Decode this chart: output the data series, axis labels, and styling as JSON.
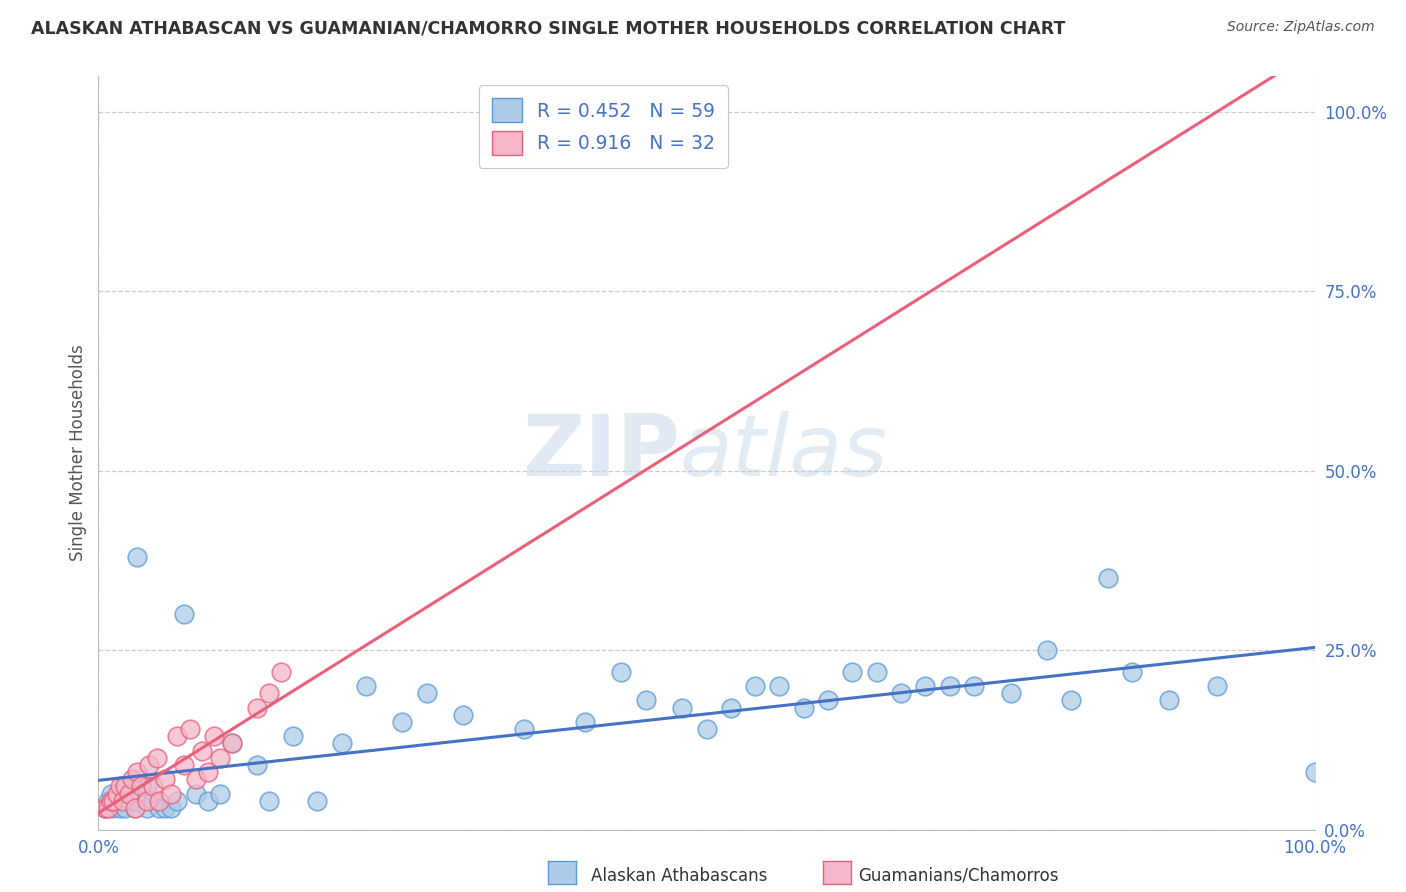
{
  "title": "ALASKAN ATHABASCAN VS GUAMANIAN/CHAMORRO SINGLE MOTHER HOUSEHOLDS CORRELATION CHART",
  "source": "Source: ZipAtlas.com",
  "ylabel": "Single Mother Households",
  "xlim": [
    0.0,
    1.0
  ],
  "ylim": [
    0.0,
    1.05
  ],
  "ytick_values": [
    0.0,
    0.25,
    0.5,
    0.75,
    1.0
  ],
  "xtick_values": [
    0.0,
    1.0
  ],
  "blue_R": "0.452",
  "blue_N": "59",
  "pink_R": "0.916",
  "pink_N": "32",
  "blue_face": "#aecce8",
  "blue_edge": "#5b9bd5",
  "pink_face": "#f5b8ca",
  "pink_edge": "#e8607a",
  "pink_line_color": "#e8607a",
  "blue_line_color": "#4472c4",
  "legend_label_blue": "Alaskan Athabascans",
  "legend_label_pink": "Guamanians/Chamorros",
  "legend_text_color": "#4472c4",
  "axis_tick_color": "#4472c4",
  "grid_color": "#cccccc",
  "text_color": "#333333",
  "source_color": "#555555",
  "background_color": "#ffffff",
  "blue_scatter_x": [
    0.005,
    0.008,
    0.01,
    0.012,
    0.015,
    0.018,
    0.02,
    0.022,
    0.025,
    0.03,
    0.03,
    0.032,
    0.035,
    0.04,
    0.04,
    0.045,
    0.05,
    0.055,
    0.06,
    0.065,
    0.07,
    0.08,
    0.09,
    0.1,
    0.11,
    0.13,
    0.14,
    0.16,
    0.18,
    0.2,
    0.22,
    0.25,
    0.27,
    0.3,
    0.35,
    0.4,
    0.43,
    0.45,
    0.48,
    0.5,
    0.52,
    0.54,
    0.56,
    0.58,
    0.6,
    0.62,
    0.64,
    0.66,
    0.68,
    0.7,
    0.72,
    0.75,
    0.78,
    0.8,
    0.83,
    0.85,
    0.88,
    0.92,
    1.0
  ],
  "blue_scatter_y": [
    0.03,
    0.04,
    0.05,
    0.03,
    0.04,
    0.03,
    0.06,
    0.03,
    0.04,
    0.03,
    0.04,
    0.38,
    0.05,
    0.03,
    0.06,
    0.04,
    0.03,
    0.03,
    0.03,
    0.04,
    0.3,
    0.05,
    0.04,
    0.05,
    0.12,
    0.09,
    0.04,
    0.13,
    0.04,
    0.12,
    0.2,
    0.15,
    0.19,
    0.16,
    0.14,
    0.15,
    0.22,
    0.18,
    0.17,
    0.14,
    0.17,
    0.2,
    0.2,
    0.17,
    0.18,
    0.22,
    0.22,
    0.19,
    0.2,
    0.2,
    0.2,
    0.19,
    0.25,
    0.18,
    0.35,
    0.22,
    0.18,
    0.2,
    0.08
  ],
  "pink_scatter_x": [
    0.005,
    0.008,
    0.01,
    0.012,
    0.015,
    0.018,
    0.02,
    0.022,
    0.025,
    0.028,
    0.03,
    0.032,
    0.035,
    0.04,
    0.042,
    0.045,
    0.048,
    0.05,
    0.055,
    0.06,
    0.065,
    0.07,
    0.075,
    0.08,
    0.085,
    0.09,
    0.095,
    0.1,
    0.11,
    0.13,
    0.14,
    0.15
  ],
  "pink_scatter_y": [
    0.03,
    0.03,
    0.04,
    0.04,
    0.05,
    0.06,
    0.04,
    0.06,
    0.05,
    0.07,
    0.03,
    0.08,
    0.06,
    0.04,
    0.09,
    0.06,
    0.1,
    0.04,
    0.07,
    0.05,
    0.13,
    0.09,
    0.14,
    0.07,
    0.11,
    0.08,
    0.13,
    0.1,
    0.12,
    0.17,
    0.19,
    0.22
  ]
}
